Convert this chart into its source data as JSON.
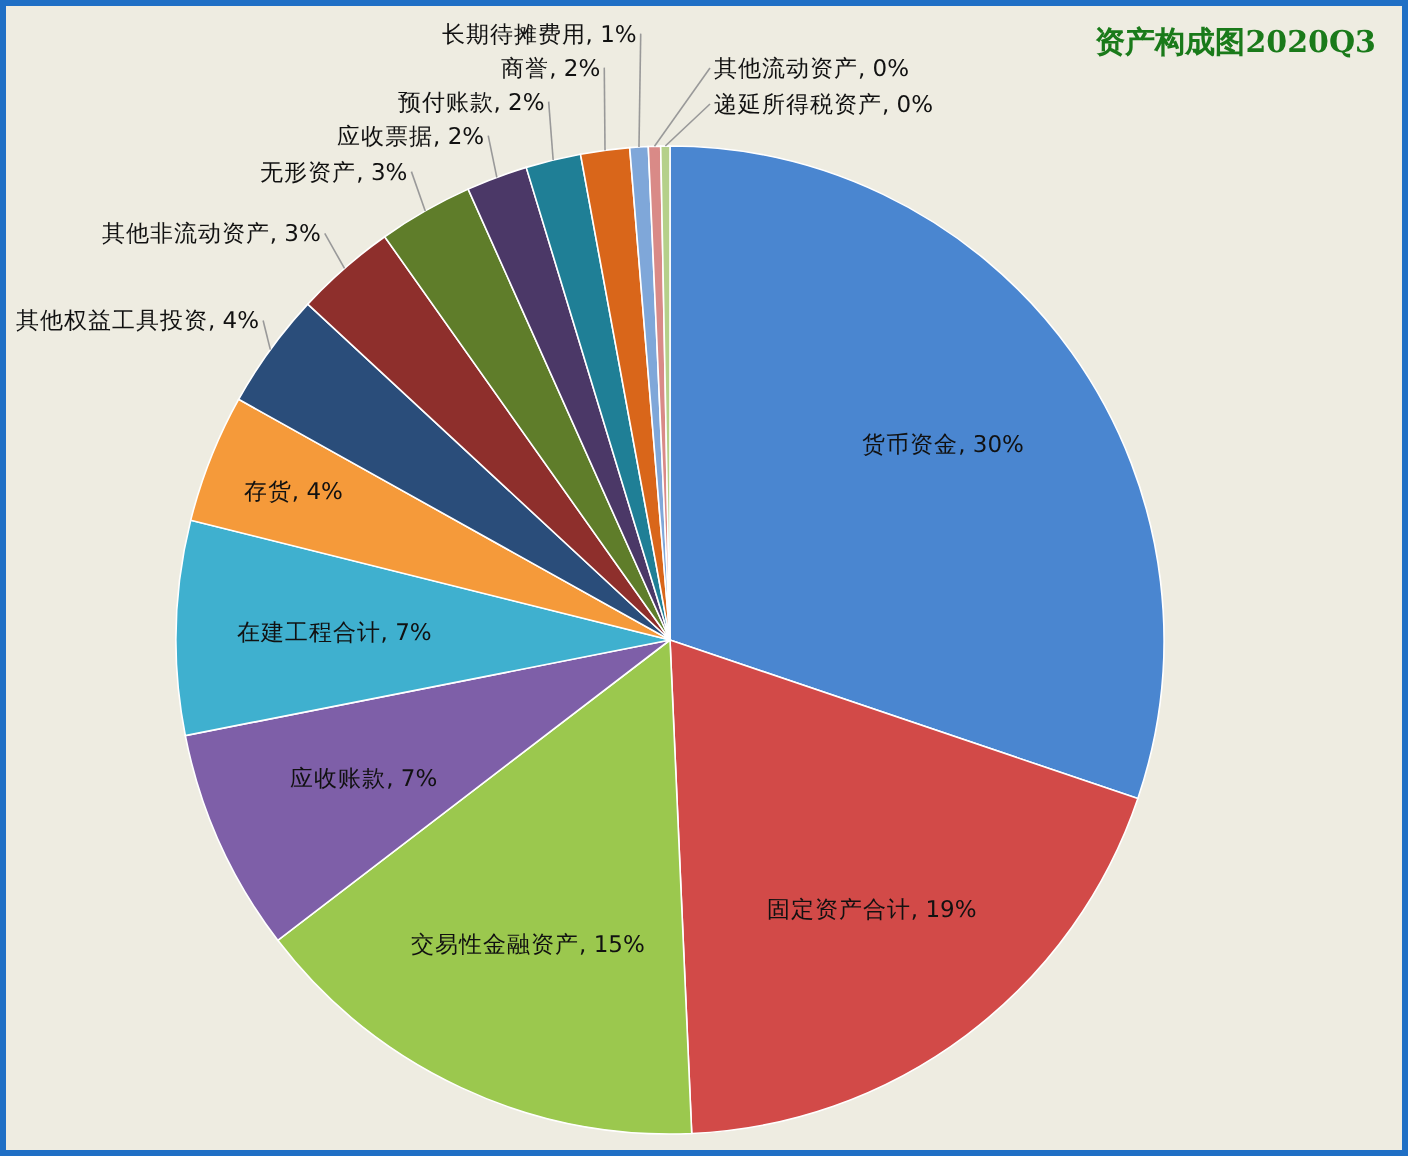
{
  "chart_data": {
    "type": "pie",
    "title": "资产构成图2020Q3",
    "categories": [
      "货币资金",
      "固定资产合计",
      "交易性金融资产",
      "应收账款",
      "在建工程合计",
      "存货",
      "其他权益工具投资",
      "其他非流动资产",
      "无形资产",
      "应收票据",
      "预付账款",
      "商誉",
      "长期待摊费用",
      "其他流动资产",
      "递延所得税资产"
    ],
    "values": [
      30.2,
      19.1,
      15.3,
      7.3,
      7.0,
      4.2,
      3.8,
      3.3,
      3.1,
      2.0,
      1.8,
      1.6,
      0.6,
      0.4,
      0.3
    ],
    "value_labels": [
      "30%",
      "19%",
      "15%",
      "7%",
      "7%",
      "4%",
      "4%",
      "3%",
      "3%",
      "2%",
      "2%",
      "2%",
      "1%",
      "0%",
      "0%"
    ],
    "colors": [
      "#4a86d0",
      "#d24a48",
      "#9bc84e",
      "#7e5fa8",
      "#3fb0cf",
      "#f59a3a",
      "#2a4d7a",
      "#8e2f2c",
      "#5f7d2a",
      "#4b3867",
      "#1f7f96",
      "#d9661a",
      "#7fa7d9",
      "#d98a87",
      "#b5d08a"
    ]
  }
}
